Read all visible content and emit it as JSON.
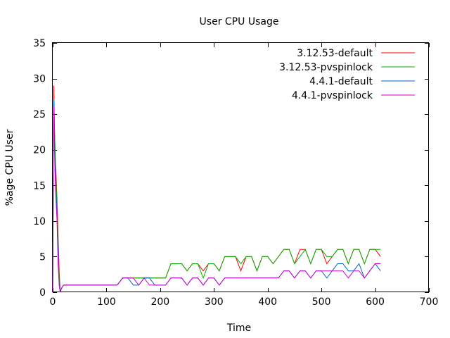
{
  "chart_data": {
    "type": "line",
    "title": "User CPU Usage",
    "xlabel": "Time",
    "ylabel": "%age CPU User",
    "xlim": [
      0,
      700
    ],
    "ylim": [
      0,
      35
    ],
    "xticks": [
      0,
      100,
      200,
      300,
      400,
      500,
      600,
      700
    ],
    "yticks": [
      0,
      5,
      10,
      15,
      20,
      25,
      30,
      35
    ],
    "grid": false,
    "legend_position": "top-right",
    "series": [
      {
        "name": "3.12.53-default",
        "color": "#ff0000",
        "x": [
          0,
          2,
          4,
          6,
          8,
          10,
          12,
          14,
          16,
          20,
          30,
          40,
          60,
          80,
          100,
          110,
          120,
          130,
          140,
          150,
          160,
          170,
          180,
          190,
          200,
          210,
          220,
          230,
          240,
          250,
          260,
          270,
          280,
          290,
          300,
          310,
          320,
          330,
          340,
          350,
          360,
          370,
          380,
          390,
          400,
          410,
          420,
          430,
          440,
          450,
          460,
          470,
          480,
          490,
          500,
          510,
          520,
          530,
          540,
          550,
          560,
          570,
          580,
          590,
          600,
          610
        ],
        "y": [
          0,
          29,
          20,
          17,
          13,
          8,
          3,
          0,
          0.5,
          1,
          1,
          1,
          1,
          1,
          1,
          1,
          1,
          2,
          2,
          2,
          2,
          2,
          2,
          2,
          2,
          2,
          4,
          4,
          4,
          3,
          4,
          4,
          3,
          4,
          4,
          3,
          5,
          5,
          5,
          3,
          5,
          5,
          3,
          5,
          5,
          4,
          5,
          6,
          6,
          4,
          6,
          6,
          4,
          6,
          6,
          4,
          5,
          6,
          6,
          4,
          6,
          6,
          4,
          6,
          6,
          5
        ]
      },
      {
        "name": "3.12.53-pvspinlock",
        "color": "#00b000",
        "x": [
          0,
          2,
          4,
          6,
          8,
          10,
          12,
          14,
          16,
          20,
          30,
          40,
          60,
          80,
          100,
          110,
          120,
          130,
          140,
          150,
          160,
          170,
          180,
          190,
          200,
          210,
          220,
          230,
          240,
          250,
          260,
          270,
          280,
          290,
          300,
          310,
          320,
          330,
          340,
          350,
          360,
          370,
          380,
          390,
          400,
          410,
          420,
          430,
          440,
          450,
          460,
          470,
          480,
          490,
          500,
          510,
          520,
          530,
          540,
          550,
          560,
          570,
          580,
          590,
          600,
          610
        ],
        "y": [
          0,
          27,
          21,
          16,
          12,
          6,
          2,
          0,
          0.5,
          1,
          1,
          1,
          1,
          1,
          1,
          1,
          1,
          2,
          2,
          2,
          2,
          2,
          2,
          2,
          2,
          2,
          4,
          4,
          4,
          3,
          4,
          4,
          2,
          4,
          4,
          3,
          5,
          5,
          5,
          4,
          5,
          5,
          3,
          5,
          5,
          4,
          5,
          6,
          6,
          4,
          5,
          6,
          4,
          6,
          6,
          5,
          5,
          6,
          6,
          4,
          6,
          6,
          4,
          6,
          6,
          6
        ]
      },
      {
        "name": "4.4.1-default",
        "color": "#0066cc",
        "x": [
          0,
          2,
          4,
          6,
          8,
          10,
          12,
          14,
          16,
          20,
          30,
          40,
          60,
          80,
          100,
          110,
          120,
          130,
          140,
          150,
          160,
          170,
          180,
          190,
          200,
          210,
          220,
          230,
          240,
          250,
          260,
          270,
          280,
          290,
          300,
          310,
          320,
          330,
          340,
          350,
          360,
          370,
          380,
          390,
          400,
          410,
          420,
          430,
          440,
          450,
          460,
          470,
          480,
          490,
          500,
          510,
          520,
          530,
          540,
          550,
          560,
          570,
          580,
          590,
          600,
          610
        ],
        "y": [
          0,
          27,
          18,
          14,
          11,
          5,
          1,
          0,
          0.5,
          1,
          1,
          1,
          1,
          1,
          1,
          1,
          1,
          2,
          2,
          1,
          1,
          2,
          2,
          1,
          1,
          1,
          2,
          2,
          2,
          1,
          2,
          2,
          1,
          2,
          2,
          1,
          2,
          2,
          2,
          2,
          2,
          2,
          2,
          2,
          2,
          2,
          2,
          3,
          3,
          2,
          3,
          3,
          2,
          3,
          3,
          2,
          3,
          4,
          4,
          3,
          3,
          4,
          2,
          3,
          4,
          3
        ]
      },
      {
        "name": "4.4.1-pvspinlock",
        "color": "#cc00cc",
        "x": [
          0,
          2,
          4,
          6,
          8,
          10,
          12,
          14,
          16,
          20,
          30,
          40,
          60,
          80,
          100,
          110,
          120,
          130,
          140,
          150,
          160,
          170,
          180,
          190,
          200,
          210,
          220,
          230,
          240,
          250,
          260,
          270,
          280,
          290,
          300,
          310,
          320,
          330,
          340,
          350,
          360,
          370,
          380,
          390,
          400,
          410,
          420,
          430,
          440,
          450,
          460,
          470,
          480,
          490,
          500,
          510,
          520,
          530,
          540,
          550,
          560,
          570,
          580,
          590,
          600,
          610
        ],
        "y": [
          0,
          26,
          17,
          13,
          10,
          4,
          1,
          0,
          0.5,
          1,
          1,
          1,
          1,
          1,
          1,
          1,
          1,
          2,
          2,
          2,
          1,
          2,
          1,
          1,
          1,
          1,
          2,
          2,
          2,
          1,
          2,
          2,
          1,
          2,
          2,
          1,
          2,
          2,
          2,
          2,
          2,
          2,
          2,
          2,
          2,
          2,
          2,
          3,
          3,
          2,
          3,
          3,
          2,
          3,
          3,
          3,
          3,
          3,
          3,
          2,
          3,
          3,
          2,
          3,
          4,
          4
        ]
      }
    ]
  }
}
